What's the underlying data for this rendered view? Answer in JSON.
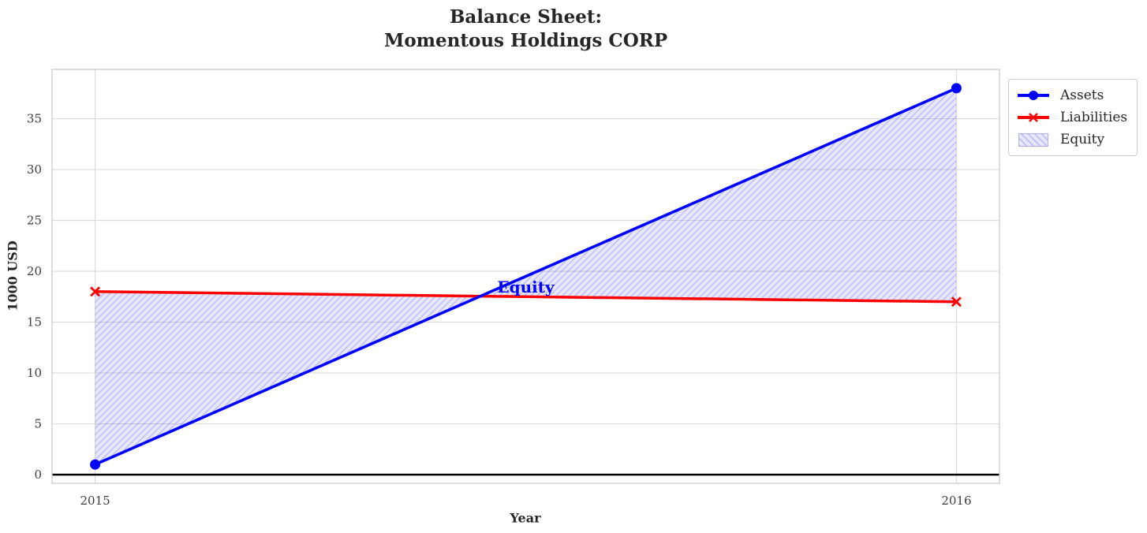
{
  "figure": {
    "title_line1": "Balance Sheet:",
    "title_line2": "Momentous Holdings CORP",
    "xlabel": "Year",
    "ylabel": "1000 USD"
  },
  "legend": {
    "items": [
      {
        "label": "Assets"
      },
      {
        "label": "Liabilities"
      },
      {
        "label": "Equity"
      }
    ]
  },
  "chart_data": {
    "type": "line",
    "title": "Balance Sheet: Momentous Holdings CORP",
    "xlabel": "Year",
    "ylabel": "1000 USD",
    "x": [
      2015,
      2016
    ],
    "series": [
      {
        "name": "Assets",
        "values": [
          1,
          38
        ],
        "color": "#0000ff",
        "marker": "circle"
      },
      {
        "name": "Liabilities",
        "values": [
          18,
          17
        ],
        "color": "#ff0000",
        "marker": "x"
      }
    ],
    "fill_between": {
      "name": "Equity",
      "between": [
        "Assets",
        "Liabilities"
      ],
      "fill_rgba": "rgba(80,80,230,0.13)",
      "hatch_rgba": "rgba(80,80,230,0.28)",
      "edge_color": "#b2b2ea",
      "hatch_style": "diagonal /"
    },
    "annotation": {
      "text": "Equity",
      "x": 2015.5,
      "y": 18.45,
      "color": "#0000ff"
    },
    "xticks": [
      2015,
      2016
    ],
    "yticks": [
      0,
      5,
      10,
      15,
      20,
      25,
      30,
      35
    ],
    "xlim": [
      2014.95,
      2016.05
    ],
    "ylim": [
      -0.85,
      39.85
    ],
    "grid": true,
    "grid_color": "#dcdcdc",
    "axes_edge_color": "#cbcbcb",
    "zero_line": {
      "y": 0,
      "color": "#000000"
    },
    "legend_position": "upper right outside axes"
  }
}
